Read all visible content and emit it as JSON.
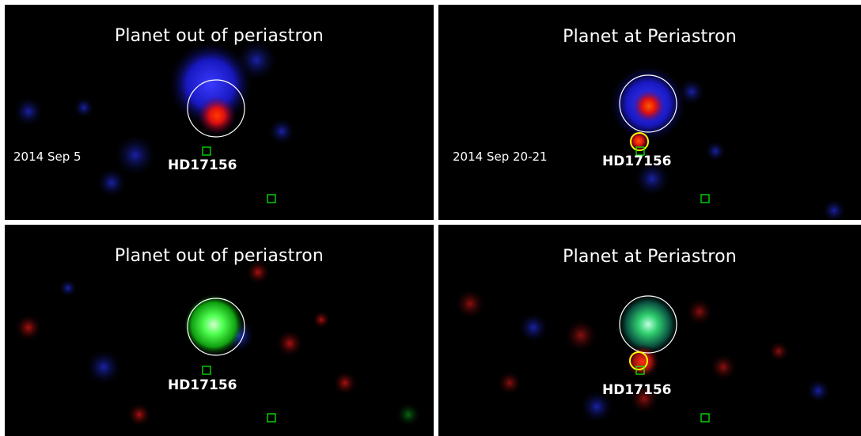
{
  "panels": [
    {
      "id": "tl",
      "title": "Planet out of periastron",
      "date": "2014 Sep 5",
      "source": "HD17156"
    },
    {
      "id": "tr",
      "title": "Planet at Periastron",
      "date": "2014 Sep 20-21",
      "source": "HD17156"
    },
    {
      "id": "bl",
      "title": "Planet out of periastron",
      "source": "HD17156"
    },
    {
      "id": "br",
      "title": "Planet at Periastron",
      "source": "HD17156"
    }
  ],
  "colors": {
    "background": "#000000",
    "frame": "#ffffff",
    "source_circle": "#ffffff",
    "flare_circle": "#ffff00",
    "marker_box": "#00ff00",
    "xray_red": "#ff2000",
    "xray_blue": "#2030ff",
    "xray_green": "#40ff40"
  }
}
